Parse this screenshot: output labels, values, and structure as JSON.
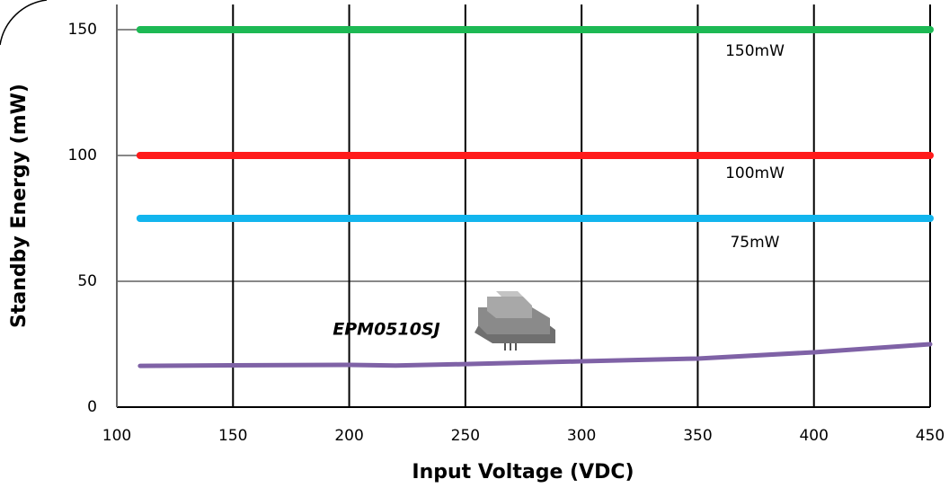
{
  "chart_data": {
    "type": "line",
    "x_label": "Input Voltage (VDC)",
    "y_label": "Standby Energy (mW)",
    "xlim": [
      100,
      450
    ],
    "xticks": [
      100,
      150,
      200,
      250,
      300,
      350,
      400,
      450
    ],
    "ylim": [
      0,
      160
    ],
    "yticks": [
      0,
      50,
      100,
      150
    ],
    "grid": true,
    "series": [
      {
        "name": "150mW",
        "color": "#1db954",
        "x": [
          110,
          450
        ],
        "values": [
          150,
          150
        ]
      },
      {
        "name": "100mW",
        "color": "#ff1a1a",
        "x": [
          110,
          450
        ],
        "values": [
          100,
          100
        ]
      },
      {
        "name": "75mW",
        "color": "#12b5ee",
        "x": [
          110,
          450
        ],
        "values": [
          75,
          75
        ]
      },
      {
        "name": "EPM0510SJ",
        "color": "#7f62a6",
        "x": [
          110,
          150,
          200,
          220,
          250,
          300,
          350,
          400,
          450
        ],
        "values": [
          16.4,
          16.6,
          16.8,
          16.5,
          17.1,
          18.2,
          19.3,
          21.8,
          25
        ]
      }
    ]
  }
}
